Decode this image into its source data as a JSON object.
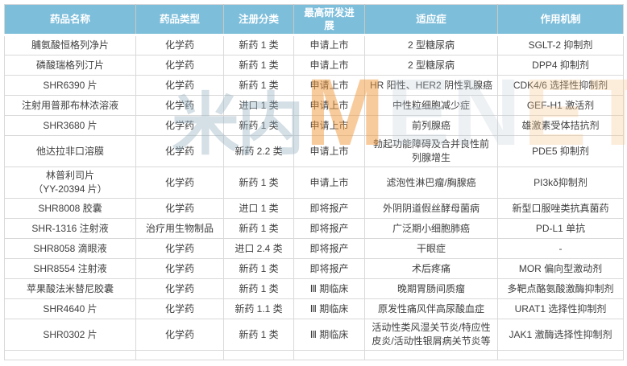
{
  "watermark": {
    "cn": "米内",
    "m": "M",
    "en": "EN",
    "et": "ET"
  },
  "colors": {
    "header_bg": "#7dbedb",
    "header_text": "#ffffff",
    "cell_text": "#3f3f3f",
    "border": "#d9d9d9",
    "watermark_orange": "#f2983a",
    "watermark_gray": "#94afc1"
  },
  "table": {
    "headers": [
      "药品名称",
      "药品类型",
      "注册分类",
      "最高研发进展",
      "适应症",
      "作用机制"
    ],
    "column_keys": [
      "name",
      "type",
      "reg_class",
      "progress",
      "indication",
      "mechanism"
    ],
    "rows": [
      {
        "name": "脯氨酸恒格列净片",
        "type": "化学药",
        "reg_class": "新药 1 类",
        "progress": "申请上市",
        "indication": "2 型糖尿病",
        "mechanism": "SGLT-2 抑制剂"
      },
      {
        "name": "磷酸瑞格列汀片",
        "type": "化学药",
        "reg_class": "新药 1 类",
        "progress": "申请上市",
        "indication": "2 型糖尿病",
        "mechanism": "DPP4 抑制剂"
      },
      {
        "name": "SHR6390 片",
        "type": "化学药",
        "reg_class": "新药 1 类",
        "progress": "申请上市",
        "indication": "HR 阳性、HER2 阴性乳腺癌",
        "mechanism": "CDK4/6 选择性抑制剂"
      },
      {
        "name": "注射用普那布林浓溶液",
        "type": "化学药",
        "reg_class": "进口 1 类",
        "progress": "申请上市",
        "indication": "中性粒细胞减少症",
        "mechanism": "GEF-H1 激活剂"
      },
      {
        "name": "SHR3680 片",
        "type": "化学药",
        "reg_class": "新药 1 类",
        "progress": "申请上市",
        "indication": "前列腺癌",
        "mechanism": "雄激素受体拮抗剂"
      },
      {
        "name": "他达拉非口溶膜",
        "type": "化学药",
        "reg_class": "新药 2.2 类",
        "progress": "申请上市",
        "indication": "勃起功能障碍及合并良性前列腺增生",
        "mechanism": "PDE5 抑制剂"
      },
      {
        "name": "林普利司片\n（YY-20394 片）",
        "type": "化学药",
        "reg_class": "新药 1 类",
        "progress": "申请上市",
        "indication": "滤泡性淋巴瘤/胸腺癌",
        "mechanism": "PI3kδ抑制剂"
      },
      {
        "name": "SHR8008 胶囊",
        "type": "化学药",
        "reg_class": "进口 1 类",
        "progress": "即将报产",
        "indication": "外阴阴道假丝酵母菌病",
        "mechanism": "新型口服唑类抗真菌药"
      },
      {
        "name": "SHR-1316 注射液",
        "type": "治疗用生物制品",
        "reg_class": "新药 1 类",
        "progress": "即将报产",
        "indication": "广泛期小细胞肺癌",
        "mechanism": "PD-L1 单抗"
      },
      {
        "name": "SHR8058 滴眼液",
        "type": "化学药",
        "reg_class": "进口 2.4 类",
        "progress": "即将报产",
        "indication": "干眼症",
        "mechanism": "-"
      },
      {
        "name": "SHR8554 注射液",
        "type": "化学药",
        "reg_class": "新药 1 类",
        "progress": "即将报产",
        "indication": "术后疼痛",
        "mechanism": "MOR 偏向型激动剂"
      },
      {
        "name": "苹果酸法米替尼胶囊",
        "type": "化学药",
        "reg_class": "新药 1 类",
        "progress": "Ⅲ 期临床",
        "indication": "晚期胃肠间质瘤",
        "mechanism": "多靶点酪氨酸激酶抑制剂"
      },
      {
        "name": "SHR4640 片",
        "type": "化学药",
        "reg_class": "新药 1.1 类",
        "progress": "Ⅲ 期临床",
        "indication": "原发性痛风伴高尿酸血症",
        "mechanism": "URAT1 选择性抑制剂"
      },
      {
        "name": "SHR0302 片",
        "type": "化学药",
        "reg_class": "新药 1 类",
        "progress": "Ⅲ 期临床",
        "indication": "活动性类风湿关节炎/特应性皮炎/活动性银屑病关节炎等",
        "mechanism": "JAK1 激酶选择性抑制剂"
      }
    ]
  }
}
